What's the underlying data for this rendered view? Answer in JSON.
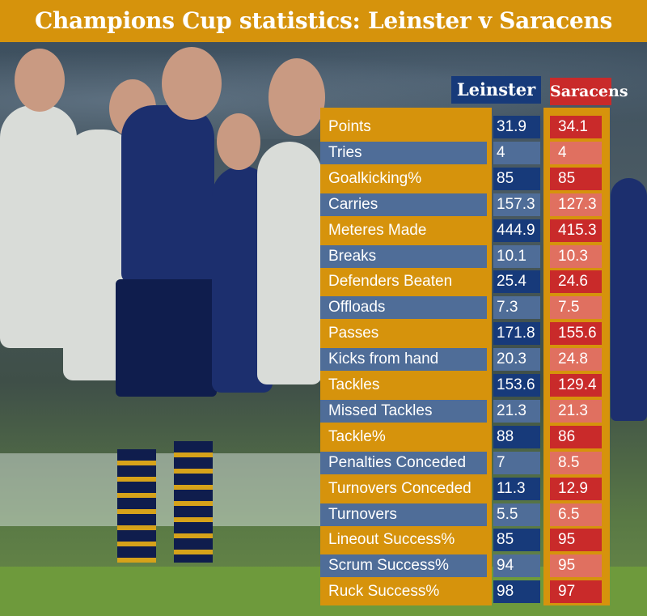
{
  "title": "Champions Cup statistics: Leinster v Saracens",
  "chart_data": {
    "type": "table",
    "title": "Champions Cup statistics: Leinster v Saracens",
    "columns": [
      "Leinster",
      "Saracens"
    ],
    "rows": [
      {
        "label": "Points",
        "leinster": "31.9",
        "saracens": "34.1"
      },
      {
        "label": "Tries",
        "leinster": "4",
        "saracens": "4"
      },
      {
        "label": "Goalkicking%",
        "leinster": "85",
        "saracens": "85"
      },
      {
        "label": "Carries",
        "leinster": "157.3",
        "saracens": "127.3"
      },
      {
        "label": "Meteres Made",
        "leinster": "444.9",
        "saracens": "415.3"
      },
      {
        "label": "Breaks",
        "leinster": "10.1",
        "saracens": "10.3"
      },
      {
        "label": "Defenders Beaten",
        "leinster": "25.4",
        "saracens": "24.6"
      },
      {
        "label": "Offloads",
        "leinster": "7.3",
        "saracens": "7.5"
      },
      {
        "label": "Passes",
        "leinster": "171.8",
        "saracens": "155.6"
      },
      {
        "label": "Kicks from hand",
        "leinster": "20.3",
        "saracens": "24.8"
      },
      {
        "label": "Tackles",
        "leinster": "153.6",
        "saracens": "129.4"
      },
      {
        "label": "Missed Tackles",
        "leinster": "21.3",
        "saracens": "21.3"
      },
      {
        "label": "Tackle%",
        "leinster": "88",
        "saracens": "86"
      },
      {
        "label": "Penalties Conceded",
        "leinster": "7",
        "saracens": "8.5"
      },
      {
        "label": "Turnovers Conceded",
        "leinster": "11.3",
        "saracens": "12.9"
      },
      {
        "label": "Turnovers",
        "leinster": "5.5",
        "saracens": "6.5"
      },
      {
        "label": "Lineout Success%",
        "leinster": "85",
        "saracens": "95"
      },
      {
        "label": "Scrum Success%",
        "leinster": "94",
        "saracens": "95"
      },
      {
        "label": "Ruck Success%",
        "leinster": "98",
        "saracens": "97"
      }
    ]
  },
  "colors": {
    "gold": "#d6930c",
    "leinster_blue": "#173a7a",
    "saracens_red": "#c92a2a",
    "row_alt_blue": "#4f6d98",
    "row_alt_red": "#e07060"
  }
}
